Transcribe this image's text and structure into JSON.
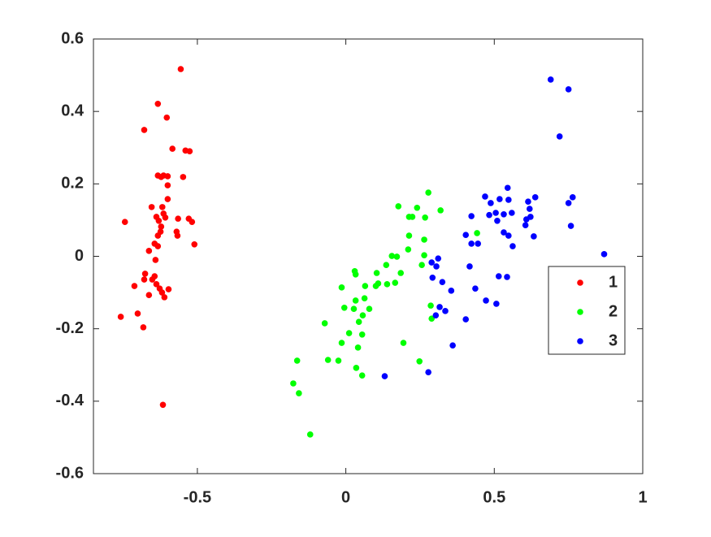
{
  "chart_data": {
    "type": "scatter",
    "xlim": [
      -0.85,
      1
    ],
    "xticks": [
      -0.5,
      0,
      0.5,
      1
    ],
    "ylim": [
      -0.6,
      0.6
    ],
    "yticks": [
      -0.6,
      -0.4,
      -0.2,
      0,
      0.2,
      0.4,
      0.6
    ],
    "grid": false,
    "legend_position": "right",
    "series": [
      {
        "name": "1",
        "color": "#ff0000",
        "x": [
          -0.556,
          -0.633,
          -0.603,
          -0.679,
          -0.584,
          -0.54,
          -0.526,
          -0.633,
          -0.622,
          -0.614,
          -0.6,
          -0.548,
          -0.6,
          -0.6,
          -0.654,
          -0.618,
          -0.614,
          -0.608,
          -0.638,
          -0.63,
          -0.565,
          -0.529,
          -0.518,
          -0.744,
          -0.622,
          -0.624,
          -0.57,
          -0.633,
          -0.567,
          -0.51,
          -0.644,
          -0.633,
          -0.663,
          -0.641,
          -0.676,
          -0.644,
          -0.679,
          -0.652,
          -0.712,
          -0.638,
          -0.627,
          -0.597,
          -0.663,
          -0.619,
          -0.611,
          -0.701,
          -0.758,
          -0.682,
          -0.616
        ],
        "values": [
          0.517,
          0.421,
          0.383,
          0.349,
          0.297,
          0.292,
          0.29,
          0.223,
          0.219,
          0.223,
          0.221,
          0.219,
          0.196,
          0.158,
          0.136,
          0.136,
          0.118,
          0.107,
          0.109,
          0.098,
          0.104,
          0.104,
          0.095,
          0.095,
          0.082,
          0.068,
          0.068,
          0.057,
          0.057,
          0.033,
          0.035,
          0.028,
          0.015,
          -0.01,
          -0.048,
          -0.055,
          -0.064,
          -0.064,
          -0.082,
          -0.077,
          -0.089,
          -0.091,
          -0.107,
          -0.1,
          -0.113,
          -0.158,
          -0.167,
          -0.196,
          -0.41
        ]
      },
      {
        "name": "2",
        "color": "#00ff00",
        "x": [
          0.177,
          0.24,
          0.278,
          0.319,
          0.267,
          0.213,
          0.224,
          0.213,
          0.442,
          0.264,
          0.21,
          0.155,
          0.172,
          0.264,
          0.136,
          0.256,
          0.104,
          0.185,
          0.03,
          0.033,
          0.065,
          0.101,
          0.139,
          0.109,
          -0.014,
          0.063,
          0.166,
          0.033,
          -0.005,
          0.027,
          0.079,
          0.286,
          0.057,
          0.044,
          0.289,
          -0.071,
          0.055,
          0.011,
          0.194,
          -0.014,
          0.041,
          -0.164,
          -0.06,
          -0.025,
          0.248,
          0.035,
          0.055,
          -0.177,
          -0.158,
          -0.12
        ],
        "values": [
          0.138,
          0.134,
          0.176,
          0.127,
          0.107,
          0.109,
          0.109,
          0.057,
          0.064,
          0.046,
          0.019,
          0.001,
          -0.001,
          0.003,
          -0.024,
          -0.024,
          -0.046,
          -0.046,
          -0.041,
          -0.05,
          -0.082,
          -0.082,
          -0.077,
          -0.075,
          -0.086,
          -0.116,
          -0.073,
          -0.122,
          -0.142,
          -0.145,
          -0.145,
          -0.136,
          -0.163,
          -0.181,
          -0.172,
          -0.185,
          -0.216,
          -0.212,
          -0.239,
          -0.239,
          -0.252,
          -0.288,
          -0.286,
          -0.288,
          -0.29,
          -0.308,
          -0.329,
          -0.351,
          -0.378,
          -0.492
        ]
      },
      {
        "name": "3",
        "color": "#0000ff",
        "x": [
          0.69,
          0.75,
          0.72,
          0.545,
          0.469,
          0.518,
          0.548,
          0.638,
          0.614,
          0.764,
          0.75,
          0.488,
          0.505,
          0.532,
          0.559,
          0.619,
          0.608,
          0.622,
          0.423,
          0.483,
          0.51,
          0.605,
          0.758,
          0.404,
          0.532,
          0.548,
          0.633,
          0.423,
          0.445,
          0.562,
          0.87,
          0.311,
          0.305,
          0.417,
          0.289,
          0.292,
          0.325,
          0.515,
          0.543,
          0.436,
          0.355,
          0.472,
          0.507,
          0.316,
          0.335,
          0.303,
          0.404,
          0.36,
          0.131,
          0.278
        ],
        "values": [
          0.488,
          0.461,
          0.331,
          0.189,
          0.165,
          0.158,
          0.156,
          0.163,
          0.151,
          0.163,
          0.147,
          0.147,
          0.12,
          0.116,
          0.12,
          0.131,
          0.102,
          0.109,
          0.111,
          0.114,
          0.098,
          0.086,
          0.084,
          0.059,
          0.066,
          0.057,
          0.055,
          0.035,
          0.035,
          0.028,
          0.006,
          -0.006,
          -0.028,
          -0.028,
          -0.017,
          -0.059,
          -0.071,
          -0.055,
          -0.057,
          -0.089,
          -0.095,
          -0.122,
          -0.131,
          -0.14,
          -0.151,
          -0.163,
          -0.174,
          -0.246,
          -0.331,
          -0.32
        ]
      }
    ]
  }
}
